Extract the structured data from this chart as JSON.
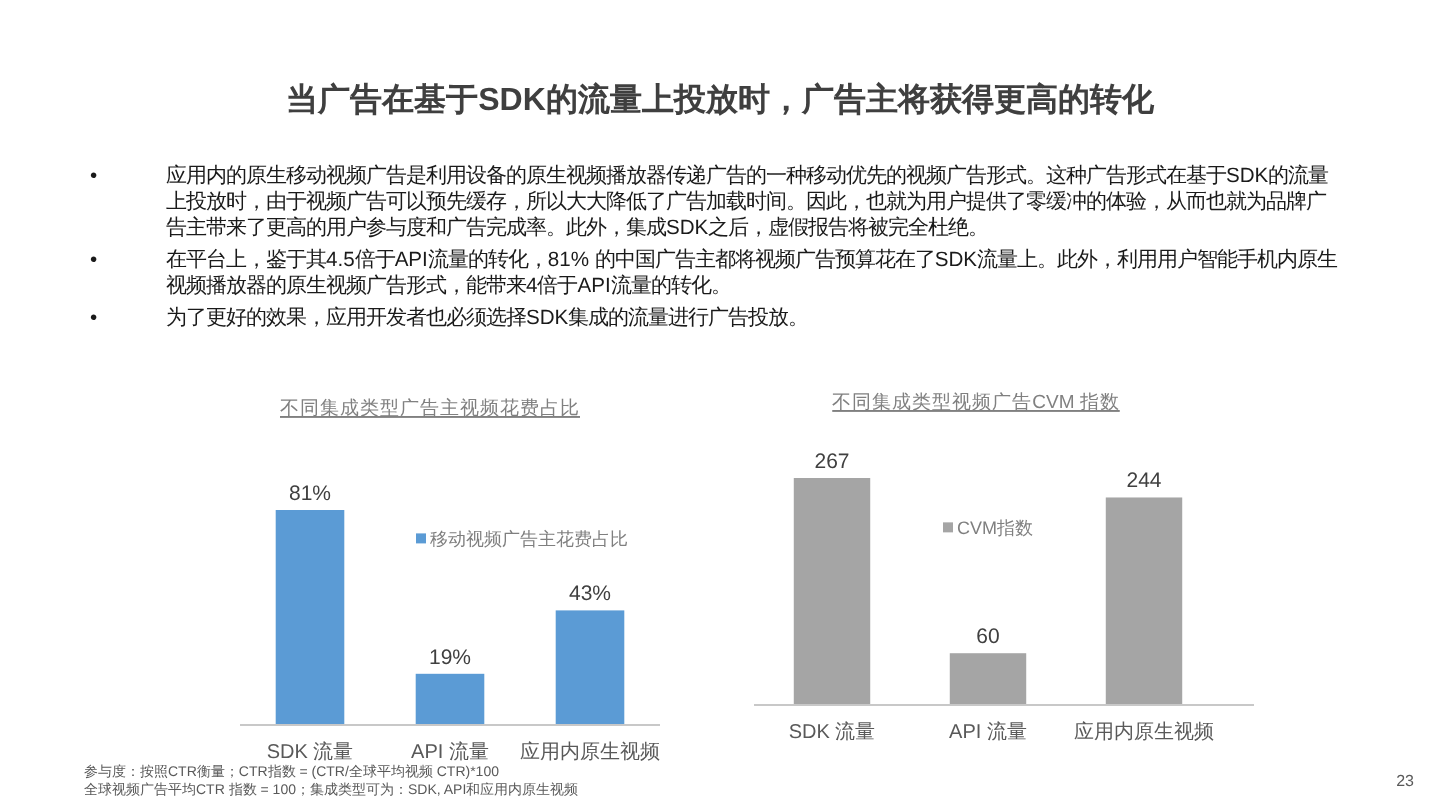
{
  "chart_data": [
    {
      "type": "other",
      "title": "当广告在基于SDK的流量上投放时，广告主将获得更高的转化",
      "annotations": [
        "•\t应用内的原生移动视频广告是利用设备的原生视频播放器传递广告的一种移动优先的视频广告形式。这种广告形式在基于SDK的流量上投放时，由于视频广告可以预先缓存，所以大大降低了广告加载时间。因此，也就为用户提供了零缓冲的体验，从而也就为品牌广告主带来了更高的用户参与度和广告完成率。此外，集成SDK之后，虚假报告将被完全杜绝。",
        "•\t在平台上，鉴于其4.5倍于API流量的转化，81% 的中国广告主都将视频广告预算花在了SDK流量上。此外，利用用户智能手机内原生视频播放器的原生视频广告形式，能带来4倍于API流量的转化。",
        "•\t为了更好的效果，应用开发者也必须选择SDK集成的流量进行广告投放。"
      ]
    },
    {
      "type": "bar",
      "title": "不同集成类型广告主视频花费占比",
      "categories": [
        "SDK 流量",
        "API 流量",
        "应用内原生视频"
      ],
      "series": [
        {
          "name": "移动视频广告主花费占比",
          "color": "#5b9bd5",
          "values": [
            81,
            19,
            43
          ],
          "value_labels": [
            "81%",
            "19%",
            "43%"
          ]
        }
      ],
      "legend": "right",
      "annotations": [
        "参与度：按照CTR衡量；CTR指数 = (CTR/全球平均视频 CTR)*100",
        "全球视频广告平均CTR 指数 = 100；集成类型可为：SDK, API和应用内原生视频"
      ]
    },
    {
      "type": "bar",
      "title": "不同集成类型视频广告CVM 指数",
      "categories": [
        "SDK 流量",
        "API 流量",
        "应用内原生视频"
      ],
      "series": [
        {
          "name": "CVM指数",
          "color": "#a5a5a5",
          "values": [
            267,
            60,
            244
          ]
        }
      ],
      "data_labels": true,
      "legend": "top",
      "annotations": [
        "23"
      ]
    }
  ]
}
